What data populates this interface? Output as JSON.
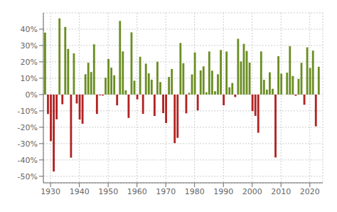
{
  "chart_data": {
    "type": "bar",
    "x": [
      1928,
      1929,
      1930,
      1931,
      1932,
      1933,
      1934,
      1935,
      1936,
      1937,
      1938,
      1939,
      1940,
      1941,
      1942,
      1943,
      1944,
      1945,
      1946,
      1947,
      1948,
      1949,
      1950,
      1951,
      1952,
      1953,
      1954,
      1955,
      1956,
      1957,
      1958,
      1959,
      1960,
      1961,
      1962,
      1963,
      1964,
      1965,
      1966,
      1967,
      1968,
      1969,
      1970,
      1971,
      1972,
      1973,
      1974,
      1975,
      1976,
      1977,
      1978,
      1979,
      1980,
      1981,
      1982,
      1983,
      1984,
      1985,
      1986,
      1987,
      1988,
      1989,
      1990,
      1991,
      1992,
      1993,
      1994,
      1995,
      1996,
      1997,
      1998,
      1999,
      2000,
      2001,
      2002,
      2003,
      2004,
      2005,
      2006,
      2007,
      2008,
      2009,
      2010,
      2011,
      2012,
      2013,
      2014,
      2015,
      2016,
      2017,
      2018,
      2019,
      2020,
      2021,
      2022,
      2023
    ],
    "values": [
      37.88,
      -11.91,
      -28.48,
      -47.07,
      -15.15,
      46.59,
      -5.94,
      41.37,
      27.92,
      -38.59,
      25.21,
      -5.45,
      -15.29,
      -17.86,
      12.43,
      19.45,
      13.8,
      30.72,
      -11.87,
      -0.5,
      -0.65,
      10.26,
      21.78,
      16.46,
      11.78,
      -6.62,
      45.02,
      26.4,
      2.62,
      -14.31,
      38.06,
      8.48,
      -2.97,
      23.13,
      -11.81,
      18.89,
      12.97,
      9.06,
      -13.09,
      20.09,
      7.66,
      -11.36,
      -17.43,
      10.79,
      15.63,
      -29.72,
      -26.47,
      31.55,
      19.15,
      -11.5,
      1.06,
      12.31,
      25.77,
      -9.73,
      14.76,
      17.27,
      1.4,
      26.33,
      14.62,
      2.03,
      12.4,
      27.25,
      -6.56,
      26.31,
      4.46,
      7.06,
      -1.54,
      34.11,
      20.26,
      31.01,
      26.67,
      19.53,
      -10.14,
      -13.04,
      -23.37,
      26.38,
      8.99,
      3.0,
      13.62,
      3.53,
      -38.49,
      23.45,
      12.78,
      0,
      13.41,
      29.6,
      11.39,
      -0.73,
      9.54,
      19.42,
      -6.24,
      28.88,
      16.26,
      26.89,
      -19.44,
      17.0
    ],
    "colors": [
      "#6b8e23",
      "#b22222",
      "#b22222",
      "#b22222",
      "#b22222",
      "#6b8e23",
      "#b22222",
      "#6b8e23",
      "#6b8e23",
      "#b22222",
      "#6b8e23",
      "#b22222",
      "#b22222",
      "#b22222",
      "#6b8e23",
      "#6b8e23",
      "#6b8e23",
      "#6b8e23",
      "#b22222",
      "#b22222",
      "#b22222",
      "#6b8e23",
      "#6b8e23",
      "#6b8e23",
      "#6b8e23",
      "#b22222",
      "#6b8e23",
      "#6b8e23",
      "#6b8e23",
      "#b22222",
      "#6b8e23",
      "#6b8e23",
      "#b22222",
      "#6b8e23",
      "#b22222",
      "#6b8e23",
      "#6b8e23",
      "#6b8e23",
      "#b22222",
      "#6b8e23",
      "#6b8e23",
      "#b22222",
      "#b22222",
      "#6b8e23",
      "#6b8e23",
      "#b22222",
      "#b22222",
      "#6b8e23",
      "#6b8e23",
      "#b22222",
      "#6b8e23",
      "#6b8e23",
      "#6b8e23",
      "#b22222",
      "#6b8e23",
      "#6b8e23",
      "#6b8e23",
      "#6b8e23",
      "#6b8e23",
      "#6b8e23",
      "#6b8e23",
      "#6b8e23",
      "#b22222",
      "#6b8e23",
      "#6b8e23",
      "#6b8e23",
      "#b22222",
      "#6b8e23",
      "#6b8e23",
      "#6b8e23",
      "#6b8e23",
      "#6b8e23",
      "#b22222",
      "#b22222",
      "#b22222",
      "#6b8e23",
      "#6b8e23",
      "#6b8e23",
      "#6b8e23",
      "#6b8e23",
      "#b22222",
      "#6b8e23",
      "#6b8e23",
      "#6b8e23",
      "#6b8e23",
      "#6b8e23",
      "#6b8e23",
      "#b22222",
      "#6b8e23",
      "#6b8e23",
      "#b22222",
      "#6b8e23",
      "#6b8e23",
      "#6b8e23",
      "#b22222",
      "#6b8e23"
    ],
    "xlim": [
      1927.5,
      2024.5
    ],
    "xticks": [
      1930,
      1940,
      1950,
      1960,
      1970,
      1980,
      1990,
      2000,
      2010,
      2020
    ],
    "ylim": [
      -54,
      50
    ],
    "yticks": [
      {
        "value": -50,
        "label": "-50%"
      },
      {
        "value": -40,
        "label": "-40%"
      },
      {
        "value": -30,
        "label": "-30%"
      },
      {
        "value": -20,
        "label": "-20%"
      },
      {
        "value": -10,
        "label": "-10%"
      },
      {
        "value": 0,
        "label": "0%"
      },
      {
        "value": 10,
        "label": "10%"
      },
      {
        "value": 20,
        "label": "20%"
      },
      {
        "value": 30,
        "label": "30%"
      },
      {
        "value": 40,
        "label": "40%"
      }
    ],
    "grid": true
  }
}
